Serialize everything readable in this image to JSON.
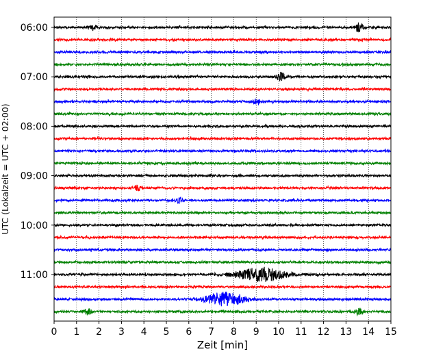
{
  "chart_data": {
    "type": "line",
    "title": "",
    "xlabel": "Zeit  [min]",
    "ylabel": "UTC (Lokalzeit = UTC + 02:00)",
    "xlim": [
      0,
      15
    ],
    "x_ticks": [
      "0",
      "1",
      "2",
      "3",
      "4",
      "5",
      "6",
      "7",
      "8",
      "9",
      "10",
      "11",
      "12",
      "13",
      "14",
      "15"
    ],
    "y_ticks": [
      "06:00",
      "07:00",
      "08:00",
      "09:00",
      "10:00",
      "11:00"
    ],
    "grid": "vertical dotted at each minute",
    "trace_interval_minutes": 15,
    "start_time": "06:00",
    "trace_count": 24,
    "trace_colors": [
      "#000000",
      "#ff0000",
      "#0000ff",
      "#008000"
    ],
    "events": [
      {
        "trace": 0,
        "minute": 1.7,
        "amplitude": "small"
      },
      {
        "trace": 0,
        "minute": 13.6,
        "amplitude": "medium"
      },
      {
        "trace": 4,
        "minute": 10.1,
        "amplitude": "medium"
      },
      {
        "trace": 6,
        "minute": 9.0,
        "amplitude": "small"
      },
      {
        "trace": 13,
        "minute": 3.7,
        "amplitude": "small"
      },
      {
        "trace": 14,
        "minute": 5.6,
        "amplitude": "small"
      },
      {
        "trace": 20,
        "minute": 9.2,
        "amplitude": "large",
        "duration": 2.2
      },
      {
        "trace": 22,
        "minute": 7.6,
        "amplitude": "large",
        "duration": 1.7
      },
      {
        "trace": 23,
        "minute": 1.5,
        "amplitude": "small"
      },
      {
        "trace": 23,
        "minute": 13.6,
        "amplitude": "small"
      }
    ]
  }
}
